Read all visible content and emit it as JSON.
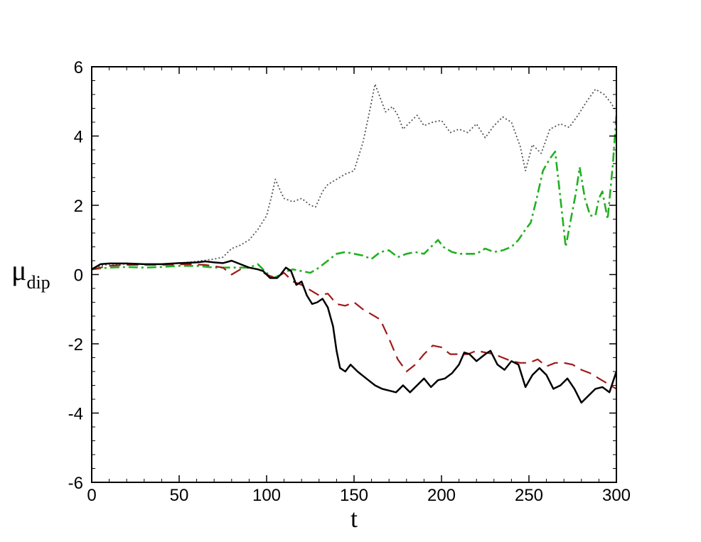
{
  "chart_data": {
    "type": "line",
    "xlabel": "t",
    "ylabel_main": "μ",
    "ylabel_sub": "dip",
    "xlim": [
      0,
      300
    ],
    "ylim": [
      -6,
      6
    ],
    "xticks": [
      0,
      50,
      100,
      150,
      200,
      250,
      300
    ],
    "yticks": [
      -6,
      -4,
      -2,
      0,
      2,
      4,
      6
    ],
    "xtick_labels": [
      "0",
      "50",
      "100",
      "150",
      "200",
      "250",
      "300"
    ],
    "ytick_labels": [
      "-6",
      "-4",
      "-2",
      "0",
      "2",
      "4",
      "6"
    ],
    "grid": false,
    "legend": "none",
    "series": [
      {
        "color": "#555555",
        "style": "dotted",
        "points": [
          [
            0,
            0.15
          ],
          [
            5,
            0.25
          ],
          [
            10,
            0.3
          ],
          [
            20,
            0.3
          ],
          [
            30,
            0.3
          ],
          [
            40,
            0.3
          ],
          [
            50,
            0.33
          ],
          [
            60,
            0.38
          ],
          [
            70,
            0.45
          ],
          [
            75,
            0.5
          ],
          [
            80,
            0.75
          ],
          [
            85,
            0.85
          ],
          [
            90,
            1.0
          ],
          [
            95,
            1.3
          ],
          [
            100,
            1.7
          ],
          [
            103,
            2.3
          ],
          [
            105,
            2.75
          ],
          [
            108,
            2.4
          ],
          [
            110,
            2.2
          ],
          [
            115,
            2.1
          ],
          [
            120,
            2.2
          ],
          [
            125,
            2.0
          ],
          [
            128,
            1.95
          ],
          [
            132,
            2.4
          ],
          [
            135,
            2.6
          ],
          [
            140,
            2.75
          ],
          [
            145,
            2.9
          ],
          [
            150,
            3.0
          ],
          [
            155,
            3.8
          ],
          [
            158,
            4.5
          ],
          [
            162,
            5.5
          ],
          [
            165,
            5.1
          ],
          [
            168,
            4.7
          ],
          [
            172,
            4.85
          ],
          [
            175,
            4.6
          ],
          [
            178,
            4.2
          ],
          [
            182,
            4.4
          ],
          [
            186,
            4.6
          ],
          [
            190,
            4.3
          ],
          [
            195,
            4.4
          ],
          [
            200,
            4.45
          ],
          [
            205,
            4.1
          ],
          [
            210,
            4.2
          ],
          [
            215,
            4.1
          ],
          [
            220,
            4.35
          ],
          [
            225,
            3.95
          ],
          [
            230,
            4.3
          ],
          [
            235,
            4.55
          ],
          [
            240,
            4.4
          ],
          [
            245,
            3.7
          ],
          [
            248,
            3.0
          ],
          [
            252,
            3.75
          ],
          [
            257,
            3.5
          ],
          [
            262,
            4.2
          ],
          [
            268,
            4.35
          ],
          [
            273,
            4.25
          ],
          [
            278,
            4.6
          ],
          [
            283,
            5.0
          ],
          [
            288,
            5.35
          ],
          [
            293,
            5.2
          ],
          [
            297,
            4.95
          ],
          [
            300,
            4.7
          ]
        ]
      },
      {
        "color": "#22b022",
        "style": "dashdot",
        "points": [
          [
            0,
            0.15
          ],
          [
            10,
            0.2
          ],
          [
            20,
            0.22
          ],
          [
            30,
            0.2
          ],
          [
            40,
            0.22
          ],
          [
            50,
            0.25
          ],
          [
            60,
            0.25
          ],
          [
            70,
            0.2
          ],
          [
            80,
            0.2
          ],
          [
            90,
            0.2
          ],
          [
            95,
            0.3
          ],
          [
            100,
            0.05
          ],
          [
            104,
            -0.1
          ],
          [
            108,
            0.0
          ],
          [
            112,
            0.1
          ],
          [
            115,
            0.15
          ],
          [
            120,
            0.1
          ],
          [
            125,
            0.05
          ],
          [
            130,
            0.2
          ],
          [
            135,
            0.4
          ],
          [
            140,
            0.6
          ],
          [
            145,
            0.65
          ],
          [
            150,
            0.6
          ],
          [
            155,
            0.55
          ],
          [
            160,
            0.45
          ],
          [
            165,
            0.65
          ],
          [
            170,
            0.7
          ],
          [
            175,
            0.5
          ],
          [
            180,
            0.6
          ],
          [
            185,
            0.65
          ],
          [
            190,
            0.6
          ],
          [
            195,
            0.85
          ],
          [
            198,
            1.0
          ],
          [
            201,
            0.8
          ],
          [
            206,
            0.65
          ],
          [
            210,
            0.6
          ],
          [
            215,
            0.6
          ],
          [
            220,
            0.6
          ],
          [
            225,
            0.75
          ],
          [
            230,
            0.65
          ],
          [
            235,
            0.7
          ],
          [
            240,
            0.8
          ],
          [
            244,
            1.0
          ],
          [
            248,
            1.3
          ],
          [
            251,
            1.5
          ],
          [
            254,
            2.1
          ],
          [
            258,
            3.0
          ],
          [
            262,
            3.35
          ],
          [
            265,
            3.55
          ],
          [
            268,
            2.2
          ],
          [
            271,
            0.8
          ],
          [
            274,
            1.6
          ],
          [
            277,
            2.4
          ],
          [
            279,
            3.1
          ],
          [
            282,
            2.2
          ],
          [
            285,
            1.7
          ],
          [
            288,
            1.7
          ],
          [
            290,
            2.2
          ],
          [
            292,
            2.4
          ],
          [
            295,
            1.6
          ],
          [
            298,
            3.2
          ],
          [
            300,
            4.6
          ]
        ]
      },
      {
        "color": "#a01818",
        "style": "dashed",
        "points": [
          [
            0,
            0.15
          ],
          [
            10,
            0.25
          ],
          [
            20,
            0.28
          ],
          [
            40,
            0.28
          ],
          [
            55,
            0.3
          ],
          [
            65,
            0.28
          ],
          [
            75,
            0.2
          ],
          [
            80,
            0.0
          ],
          [
            85,
            0.15
          ],
          [
            90,
            0.2
          ],
          [
            95,
            0.15
          ],
          [
            100,
            0.0
          ],
          [
            105,
            -0.1
          ],
          [
            110,
            0.05
          ],
          [
            115,
            -0.2
          ],
          [
            120,
            -0.3
          ],
          [
            125,
            -0.45
          ],
          [
            130,
            -0.6
          ],
          [
            135,
            -0.55
          ],
          [
            140,
            -0.85
          ],
          [
            145,
            -0.9
          ],
          [
            150,
            -0.8
          ],
          [
            155,
            -1.0
          ],
          [
            160,
            -1.15
          ],
          [
            165,
            -1.3
          ],
          [
            170,
            -1.85
          ],
          [
            175,
            -2.45
          ],
          [
            180,
            -2.8
          ],
          [
            185,
            -2.6
          ],
          [
            190,
            -2.3
          ],
          [
            195,
            -2.05
          ],
          [
            200,
            -2.1
          ],
          [
            205,
            -2.3
          ],
          [
            210,
            -2.3
          ],
          [
            215,
            -2.3
          ],
          [
            220,
            -2.2
          ],
          [
            225,
            -2.25
          ],
          [
            230,
            -2.3
          ],
          [
            235,
            -2.4
          ],
          [
            240,
            -2.5
          ],
          [
            245,
            -2.55
          ],
          [
            250,
            -2.55
          ],
          [
            255,
            -2.45
          ],
          [
            260,
            -2.65
          ],
          [
            265,
            -2.55
          ],
          [
            270,
            -2.55
          ],
          [
            275,
            -2.6
          ],
          [
            280,
            -2.75
          ],
          [
            285,
            -2.85
          ],
          [
            290,
            -3.0
          ],
          [
            295,
            -3.15
          ],
          [
            300,
            -3.3
          ]
        ]
      },
      {
        "color": "#000000",
        "style": "solid",
        "points": [
          [
            0,
            0.15
          ],
          [
            5,
            0.3
          ],
          [
            10,
            0.32
          ],
          [
            20,
            0.32
          ],
          [
            30,
            0.3
          ],
          [
            40,
            0.3
          ],
          [
            50,
            0.33
          ],
          [
            60,
            0.35
          ],
          [
            65,
            0.38
          ],
          [
            70,
            0.35
          ],
          [
            75,
            0.33
          ],
          [
            80,
            0.4
          ],
          [
            85,
            0.3
          ],
          [
            90,
            0.2
          ],
          [
            95,
            0.15
          ],
          [
            98,
            0.1
          ],
          [
            102,
            -0.1
          ],
          [
            106,
            -0.1
          ],
          [
            108,
            0.0
          ],
          [
            111,
            0.2
          ],
          [
            114,
            0.1
          ],
          [
            117,
            -0.3
          ],
          [
            120,
            -0.2
          ],
          [
            123,
            -0.6
          ],
          [
            126,
            -0.85
          ],
          [
            129,
            -0.8
          ],
          [
            132,
            -0.7
          ],
          [
            135,
            -0.95
          ],
          [
            138,
            -1.5
          ],
          [
            140,
            -2.2
          ],
          [
            142,
            -2.7
          ],
          [
            145,
            -2.8
          ],
          [
            148,
            -2.6
          ],
          [
            152,
            -2.8
          ],
          [
            157,
            -3.0
          ],
          [
            162,
            -3.2
          ],
          [
            166,
            -3.3
          ],
          [
            170,
            -3.35
          ],
          [
            174,
            -3.4
          ],
          [
            178,
            -3.2
          ],
          [
            182,
            -3.4
          ],
          [
            186,
            -3.2
          ],
          [
            190,
            -3.0
          ],
          [
            194,
            -3.25
          ],
          [
            198,
            -3.05
          ],
          [
            202,
            -3.0
          ],
          [
            206,
            -2.85
          ],
          [
            210,
            -2.6
          ],
          [
            213,
            -2.25
          ],
          [
            216,
            -2.3
          ],
          [
            220,
            -2.5
          ],
          [
            225,
            -2.3
          ],
          [
            228,
            -2.2
          ],
          [
            232,
            -2.6
          ],
          [
            236,
            -2.75
          ],
          [
            240,
            -2.5
          ],
          [
            244,
            -2.6
          ],
          [
            248,
            -3.25
          ],
          [
            252,
            -2.9
          ],
          [
            256,
            -2.7
          ],
          [
            260,
            -2.9
          ],
          [
            264,
            -3.3
          ],
          [
            268,
            -3.2
          ],
          [
            272,
            -3.0
          ],
          [
            276,
            -3.3
          ],
          [
            280,
            -3.7
          ],
          [
            284,
            -3.5
          ],
          [
            288,
            -3.3
          ],
          [
            292,
            -3.25
          ],
          [
            296,
            -3.4
          ],
          [
            300,
            -2.8
          ]
        ]
      }
    ]
  }
}
